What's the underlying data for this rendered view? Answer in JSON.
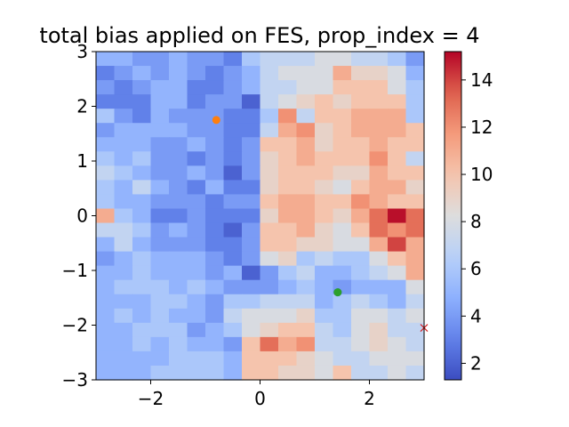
{
  "chart_data": {
    "type": "heatmap",
    "title": "total bias applied on FES, prop_index = 4",
    "xlabel": "",
    "ylabel": "",
    "xlim": [
      -3,
      3
    ],
    "ylim": [
      -3,
      3
    ],
    "x_ticks": [
      -2,
      0,
      2
    ],
    "y_ticks": [
      3,
      2,
      1,
      0,
      -1,
      -2,
      -3
    ],
    "x_tick_labels": [
      "−2",
      "0",
      "2"
    ],
    "y_tick_labels": [
      "3",
      "2",
      "1",
      "0",
      "−1",
      "−2",
      "−3"
    ],
    "colormap": "coolwarm",
    "colorbar": {
      "min": 1.3,
      "max": 15.2,
      "ticks": [
        2,
        4,
        6,
        8,
        10,
        12,
        14
      ],
      "tick_labels": [
        "2",
        "4",
        "6",
        "8",
        "10",
        "12",
        "14"
      ]
    },
    "grid_rows_top_to_bottom": [
      [
        5,
        5,
        4,
        4,
        5,
        4,
        4,
        3,
        6,
        7,
        7,
        7,
        8,
        8,
        7,
        7,
        6,
        4
      ],
      [
        3,
        4,
        5,
        4,
        5,
        4,
        3,
        4,
        5,
        7,
        8,
        8,
        8,
        11,
        9,
        9,
        8,
        5
      ],
      [
        4,
        3,
        4,
        5,
        5,
        3,
        3,
        4,
        5,
        7,
        7,
        8,
        8,
        10,
        10,
        10,
        8,
        6
      ],
      [
        3,
        3,
        3,
        5,
        5,
        3,
        4,
        4,
        2,
        7,
        8,
        9,
        10,
        9,
        10,
        10,
        10,
        6
      ],
      [
        6,
        4,
        3,
        5,
        4,
        4,
        4,
        3,
        3,
        6,
        12,
        7,
        10,
        10,
        11,
        11,
        11,
        6
      ],
      [
        4,
        5,
        5,
        5,
        5,
        4,
        4,
        3,
        3,
        7,
        11,
        12,
        9,
        10,
        11,
        11,
        11,
        10
      ],
      [
        5,
        5,
        5,
        4,
        4,
        5,
        4,
        3,
        4,
        10,
        10,
        11,
        9,
        10,
        10,
        11,
        10,
        10
      ],
      [
        6,
        5,
        6,
        4,
        4,
        3,
        4,
        3,
        4,
        9,
        10,
        11,
        10,
        10,
        10,
        12,
        10,
        7
      ],
      [
        7,
        6,
        5,
        4,
        4,
        5,
        4,
        2,
        4,
        9,
        10,
        10,
        10,
        9,
        9,
        11,
        10,
        10
      ],
      [
        6,
        5,
        7,
        5,
        4,
        3,
        5,
        3,
        3,
        9,
        10,
        10,
        9,
        8,
        10,
        11,
        11,
        9
      ],
      [
        6,
        5,
        5,
        4,
        4,
        4,
        3,
        4,
        4,
        10,
        11,
        11,
        10,
        10,
        12,
        11,
        10,
        10
      ],
      [
        11,
        6,
        5,
        3,
        3,
        4,
        3,
        3,
        3,
        9,
        11,
        11,
        10,
        9,
        11,
        13,
        15,
        13
      ],
      [
        7,
        7,
        6,
        4,
        5,
        4,
        3,
        2,
        4,
        10,
        10,
        11,
        9,
        8,
        10,
        13,
        12,
        13
      ],
      [
        5,
        7,
        5,
        4,
        4,
        4,
        3,
        3,
        4,
        10,
        10,
        9,
        9,
        8,
        8,
        11,
        14,
        11
      ],
      [
        4,
        5,
        6,
        5,
        5,
        5,
        4,
        3,
        4,
        8,
        9,
        6,
        7,
        6,
        6,
        8,
        10,
        11
      ],
      [
        5,
        5,
        6,
        5,
        5,
        5,
        4,
        5,
        2,
        4,
        6,
        7,
        5,
        5,
        6,
        7,
        8,
        11
      ],
      [
        5,
        6,
        6,
        6,
        5,
        6,
        5,
        4,
        4,
        4,
        5,
        6,
        5,
        4,
        5,
        5,
        5,
        8
      ],
      [
        5,
        5,
        5,
        6,
        6,
        5,
        4,
        6,
        6,
        7,
        7,
        7,
        5,
        6,
        7,
        6,
        5,
        7
      ],
      [
        5,
        6,
        5,
        6,
        5,
        5,
        4,
        7,
        8,
        8,
        8,
        9,
        6,
        6,
        8,
        8,
        7,
        8
      ],
      [
        5,
        5,
        6,
        6,
        6,
        4,
        5,
        6,
        8,
        9,
        10,
        10,
        7,
        6,
        8,
        9,
        7,
        7
      ],
      [
        5,
        5,
        6,
        5,
        6,
        5,
        5,
        4,
        10,
        13,
        11,
        12,
        7,
        7,
        8,
        9,
        8,
        7
      ],
      [
        5,
        5,
        5,
        5,
        6,
        6,
        6,
        5,
        10,
        10,
        10,
        9,
        8,
        7,
        7,
        8,
        8,
        8
      ],
      [
        5,
        5,
        5,
        6,
        6,
        6,
        6,
        5,
        10,
        10,
        9,
        9,
        8,
        10,
        7,
        7,
        8,
        7
      ]
    ],
    "markers": [
      {
        "x": -0.8,
        "y": 1.75,
        "shape": "circle",
        "color": "#ff7f0e"
      },
      {
        "x": 1.42,
        "y": -1.4,
        "shape": "circle",
        "color": "#1f77b4"
      },
      {
        "x": 1.42,
        "y": -1.4,
        "shape": "circle",
        "color": "#2ca02c"
      },
      {
        "x": 3.0,
        "y": -2.05,
        "shape": "x",
        "color": "#d62728"
      }
    ]
  }
}
